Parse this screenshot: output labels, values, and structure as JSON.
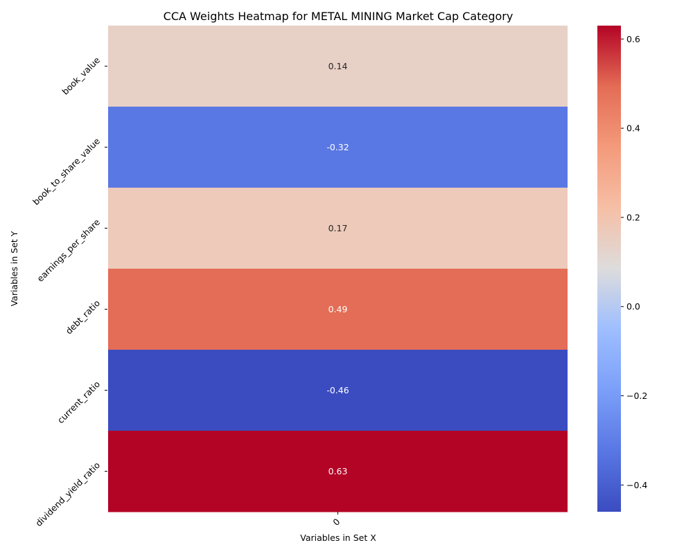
{
  "chart_data": {
    "type": "heatmap",
    "title": "CCA Weights Heatmap for METAL MINING Market Cap Category",
    "xlabel": "Variables in Set X",
    "ylabel": "Variables in Set Y",
    "x_categories": [
      "0"
    ],
    "y_categories": [
      "book_value",
      "book_to_share_value",
      "earnings_per_share",
      "debt_ratio",
      "current_ratio",
      "dividend_yield_ratio"
    ],
    "values": [
      0.14,
      -0.32,
      0.17,
      0.49,
      -0.46,
      0.63
    ],
    "cell_labels": [
      "0.14",
      "-0.32",
      "0.17",
      "0.49",
      "-0.46",
      "0.63"
    ],
    "colormap": "coolwarm",
    "vmin": -0.46,
    "vmax": 0.63,
    "colorbar_ticks": [
      -0.4,
      -0.2,
      0.0,
      0.2,
      0.4,
      0.6
    ],
    "colorbar_tick_labels": [
      "−0.4",
      "−0.2",
      "0.0",
      "0.2",
      "0.4",
      "0.6"
    ],
    "colorbar_position": "right"
  }
}
